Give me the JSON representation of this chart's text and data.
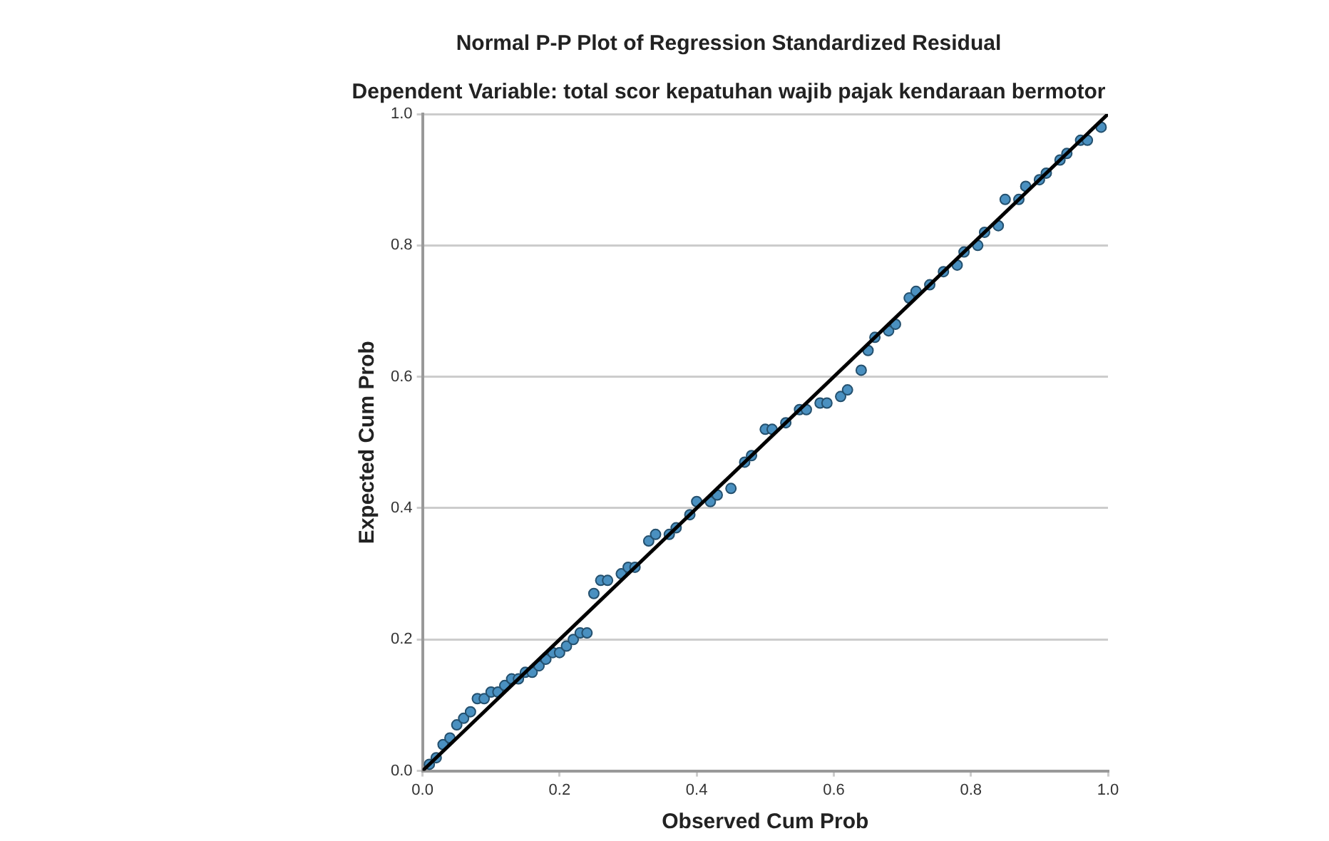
{
  "chart_data": {
    "type": "scatter",
    "title": "Normal P-P Plot of Regression Standardized Residual",
    "subtitle": "Dependent Variable: total scor kepatuhan wajib pajak kendaraan bermotor",
    "xlabel": "Observed Cum Prob",
    "ylabel": "Expected Cum Prob",
    "xlim": [
      0,
      1
    ],
    "ylim": [
      0,
      1
    ],
    "xticks": [
      {
        "value": 0,
        "label": "0.0"
      },
      0.2,
      0.4,
      0.6,
      0.8,
      {
        "value": 1,
        "label": "1.0"
      }
    ],
    "yticks": [
      {
        "value": 0,
        "label": "0.0"
      },
      0.2,
      0.4,
      0.6,
      0.8,
      {
        "value": 1,
        "label": "1.0"
      }
    ],
    "grid": "y",
    "marker": "circle",
    "legend": false,
    "series": [
      {
        "color": "#4a90c0",
        "x": [
          0.01,
          0.02,
          0.03,
          0.04,
          0.05,
          0.06,
          0.07,
          0.08,
          0.09,
          0.1,
          0.11,
          0.12,
          0.13,
          0.14,
          0.15,
          0.16,
          0.17,
          0.18,
          0.19,
          0.2,
          0.21,
          0.22,
          0.23,
          0.24,
          0.25,
          0.26,
          0.27,
          0.29,
          0.3,
          0.31,
          0.33,
          0.34,
          0.36,
          0.37,
          0.39,
          0.4,
          0.42,
          0.43,
          0.45,
          0.47,
          0.48,
          0.5,
          0.51,
          0.53,
          0.55,
          0.56,
          0.58,
          0.59,
          0.61,
          0.62,
          0.64,
          0.65,
          0.66,
          0.68,
          0.69,
          0.71,
          0.72,
          0.74,
          0.76,
          0.78,
          0.79,
          0.81,
          0.82,
          0.84,
          0.85,
          0.87,
          0.88,
          0.9,
          0.91,
          0.93,
          0.94,
          0.96,
          0.97,
          0.99
        ],
        "values": [
          0.01,
          0.02,
          0.04,
          0.05,
          0.07,
          0.08,
          0.09,
          0.11,
          0.11,
          0.12,
          0.12,
          0.13,
          0.14,
          0.14,
          0.15,
          0.15,
          0.16,
          0.17,
          0.18,
          0.18,
          0.19,
          0.2,
          0.21,
          0.21,
          0.27,
          0.29,
          0.29,
          0.3,
          0.31,
          0.31,
          0.35,
          0.36,
          0.36,
          0.37,
          0.39,
          0.41,
          0.41,
          0.42,
          0.43,
          0.47,
          0.48,
          0.52,
          0.52,
          0.53,
          0.55,
          0.55,
          0.56,
          0.56,
          0.57,
          0.58,
          0.61,
          0.64,
          0.66,
          0.67,
          0.68,
          0.72,
          0.73,
          0.74,
          0.76,
          0.77,
          0.79,
          0.8,
          0.82,
          0.83,
          0.87,
          0.87,
          0.89,
          0.9,
          0.91,
          0.93,
          0.94,
          0.96,
          0.96,
          0.98
        ]
      },
      {
        "type": "line",
        "color": "#000000",
        "marker": "none",
        "x": [
          0,
          1
        ],
        "values": [
          0,
          1
        ]
      }
    ]
  }
}
